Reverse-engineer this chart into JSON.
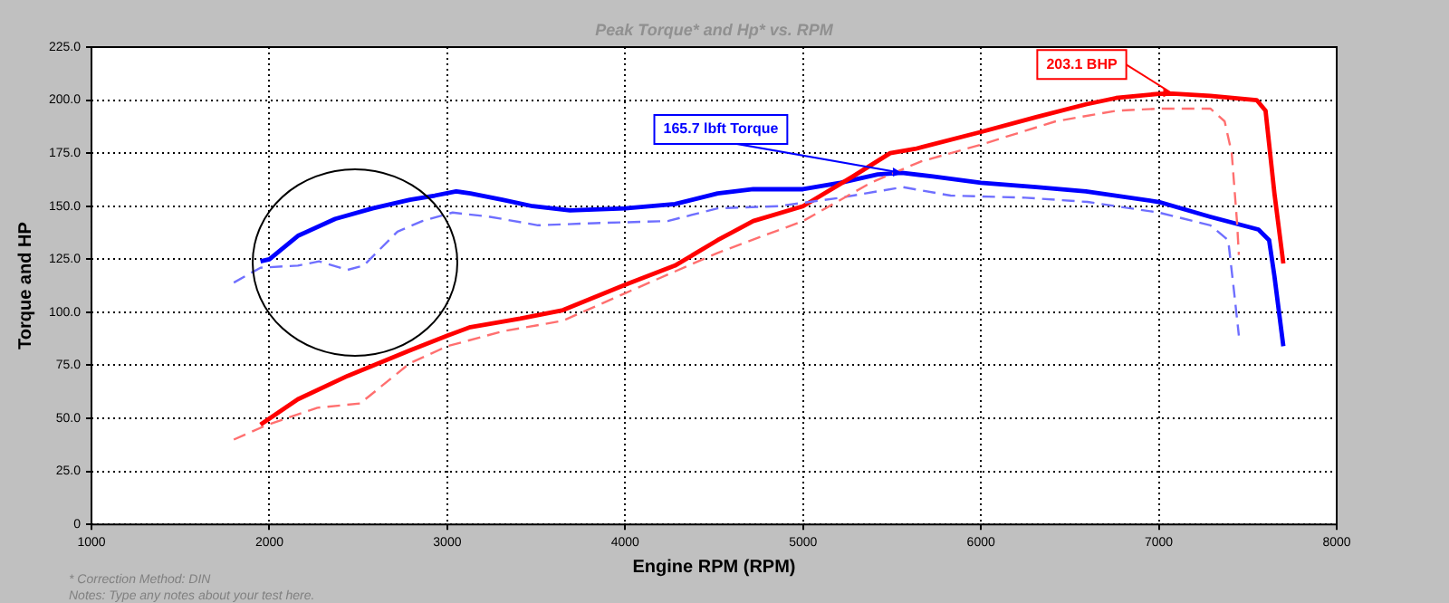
{
  "chart_data": {
    "type": "line",
    "title": "Peak Torque* and Hp* vs. RPM",
    "xlabel": "Engine RPM (RPM)",
    "ylabel": "Torque and HP",
    "xlim": [
      1000,
      8000
    ],
    "xticks": [
      1000,
      2000,
      3000,
      4000,
      5000,
      6000,
      7000,
      8000
    ],
    "ylim": [
      0,
      225
    ],
    "yticks": [
      {
        "value": 0,
        "label": "0"
      },
      {
        "value": 25,
        "label": "25.0"
      },
      {
        "value": 50,
        "label": "50.0"
      },
      {
        "value": 75,
        "label": "75.0"
      },
      {
        "value": 100,
        "label": "100.0"
      },
      {
        "value": 125,
        "label": "125.0"
      },
      {
        "value": 150,
        "label": "150.0"
      },
      {
        "value": 175,
        "label": "175.0"
      },
      {
        "value": 200,
        "label": "200.0"
      },
      {
        "value": 225,
        "label": "225.0"
      }
    ],
    "grid": true,
    "legend": false,
    "marker": "none",
    "series": [
      {
        "color": "#ff6f6f",
        "line_style": "dashed",
        "x": [
          1800,
          1990,
          2270,
          2510,
          2790,
          3000,
          3310,
          3650,
          4000,
          4520,
          5000,
          5380,
          5660,
          6000,
          6420,
          6760,
          7000,
          7290,
          7370,
          7410,
          7440,
          7450
        ],
        "values": [
          40,
          47,
          55,
          57,
          76,
          84,
          91,
          96,
          109,
          128,
          143,
          161,
          171,
          179,
          190,
          195,
          196,
          196,
          190,
          175,
          142,
          127
        ]
      },
      {
        "color": "#6f6fff",
        "line_style": "dashed",
        "x": [
          1800,
          1950,
          2160,
          2280,
          2440,
          2530,
          2720,
          2860,
          3030,
          3240,
          3510,
          3830,
          4240,
          4520,
          4860,
          5210,
          5560,
          5830,
          6250,
          6600,
          7000,
          7290,
          7390,
          7420,
          7450
        ],
        "values": [
          114,
          121,
          122,
          124,
          120,
          122,
          138,
          143,
          147,
          145,
          141,
          142,
          143,
          149,
          150,
          154,
          159,
          155,
          154,
          152,
          147,
          141,
          134,
          112,
          89
        ]
      },
      {
        "color": "#ff0000",
        "line_style": "solid",
        "x": [
          1950,
          2160,
          2440,
          2790,
          3000,
          3130,
          3410,
          3650,
          4000,
          4280,
          4520,
          4720,
          5000,
          5280,
          5490,
          5630,
          6000,
          6310,
          6590,
          6760,
          7000,
          7076,
          7290,
          7550,
          7600,
          7650,
          7700
        ],
        "values": [
          47,
          59,
          70,
          82,
          89,
          93,
          97,
          101,
          113,
          122,
          134,
          143,
          150,
          164,
          175,
          177,
          185,
          192,
          198,
          201,
          203,
          203.1,
          202,
          200,
          195,
          156,
          123
        ]
      },
      {
        "color": "#0000ff",
        "line_style": "solid",
        "x": [
          1950,
          2000,
          2160,
          2370,
          2580,
          2790,
          2930,
          3050,
          3130,
          3310,
          3480,
          3690,
          4000,
          4280,
          4520,
          4720,
          5000,
          5210,
          5420,
          5556,
          5730,
          6000,
          6310,
          6590,
          7000,
          7290,
          7560,
          7620,
          7650,
          7700
        ],
        "values": [
          124,
          125,
          136,
          144,
          149,
          153,
          155,
          157,
          156,
          153,
          150,
          148,
          149,
          151,
          156,
          158,
          158,
          161,
          165,
          165.7,
          164,
          161,
          159,
          157,
          152,
          145,
          139,
          134,
          117,
          84
        ]
      }
    ],
    "annotations": [
      {
        "text": "165.7 lbft Torque",
        "x": 5556,
        "y": 165.7
      },
      {
        "text": "203.1 BHP",
        "x": 7076,
        "y": 203.1
      },
      "* Correction Method: DIN",
      "Notes: Type any notes about your test here."
    ]
  }
}
